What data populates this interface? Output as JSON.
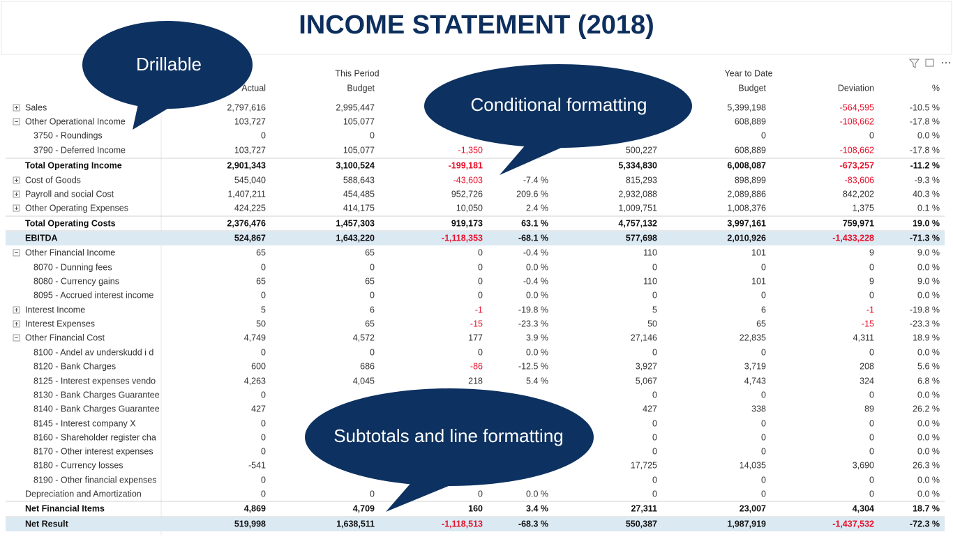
{
  "header": {
    "title": "INCOME STATEMENT (2018)"
  },
  "callouts": [
    "Drillable",
    "Conditional formatting",
    "Subtotals and line formatting"
  ],
  "table": {
    "group_headers": [
      "This Period",
      "Year to Date"
    ],
    "columns": [
      null,
      "Actual",
      "Budget",
      null,
      null,
      null,
      "Budget",
      "Deviation",
      "%"
    ],
    "rows": [
      [
        "Sales",
        "2,797,616",
        "2,995,447",
        null,
        null,
        null,
        "5,399,198",
        "-564,595",
        "-10.5 %"
      ],
      [
        "Other Operational Income",
        "103,727",
        "105,077",
        null,
        null,
        null,
        "608,889",
        "-108,662",
        "-17.8 %"
      ],
      [
        "3750 - Roundings",
        "0",
        "0",
        null,
        null,
        null,
        "0",
        "0",
        "0.0 %"
      ],
      [
        "3790 - Deferred Income",
        "103,727",
        "105,077",
        "-1,350",
        null,
        "500,227",
        "608,889",
        "-108,662",
        "-17.8 %"
      ],
      [
        "Total Operating Income",
        "2,901,343",
        "3,100,524",
        "-199,181",
        null,
        "5,334,830",
        "6,008,087",
        "-673,257",
        "-11.2 %"
      ],
      [
        "Cost of Goods",
        "545,040",
        "588,643",
        "-43,603",
        "-7.4 %",
        "815,293",
        "898,899",
        "-83,606",
        "-9.3 %"
      ],
      [
        "Payroll and social Cost",
        "1,407,211",
        "454,485",
        "952,726",
        "209.6 %",
        "2,932,088",
        "2,089,886",
        "842,202",
        "40.3 %"
      ],
      [
        "Other Operating Expenses",
        "424,225",
        "414,175",
        "10,050",
        "2.4 %",
        "1,009,751",
        "1,008,376",
        "1,375",
        "0.1 %"
      ],
      [
        "Total Operating Costs",
        "2,376,476",
        "1,457,303",
        "919,173",
        "63.1 %",
        "4,757,132",
        "3,997,161",
        "759,971",
        "19.0 %"
      ],
      [
        "EBITDA",
        "524,867",
        "1,643,220",
        "-1,118,353",
        "-68.1 %",
        "577,698",
        "2,010,926",
        "-1,433,228",
        "-71.3 %"
      ],
      [
        "Other Financial Income",
        "65",
        "65",
        "0",
        "-0.4 %",
        "110",
        "101",
        "9",
        "9.0 %"
      ],
      [
        "8070 - Dunning fees",
        "0",
        "0",
        "0",
        "0.0 %",
        "0",
        "0",
        "0",
        "0.0 %"
      ],
      [
        "8080 - Currency gains",
        "65",
        "65",
        "0",
        "-0.4 %",
        "110",
        "101",
        "9",
        "9.0 %"
      ],
      [
        "8095 - Accrued interest income",
        "0",
        "0",
        "0",
        "0.0 %",
        "0",
        "0",
        "0",
        "0.0 %"
      ],
      [
        "Interest Income",
        "5",
        "6",
        "-1",
        "-19.8 %",
        "5",
        "6",
        "-1",
        "-19.8 %"
      ],
      [
        "Interest Expenses",
        "50",
        "65",
        "-15",
        "-23.3 %",
        "50",
        "65",
        "-15",
        "-23.3 %"
      ],
      [
        "Other Financial Cost",
        "4,749",
        "4,572",
        "177",
        "3.9 %",
        "27,146",
        "22,835",
        "4,311",
        "18.9 %"
      ],
      [
        "8100 - Andel av underskudd i d",
        "0",
        "0",
        "0",
        "0.0 %",
        "0",
        "0",
        "0",
        "0.0 %"
      ],
      [
        "8120 - Bank Charges",
        "600",
        "686",
        "-86",
        "-12.5 %",
        "3,927",
        "3,719",
        "208",
        "5.6 %"
      ],
      [
        "8125 - Interest expenses vendo",
        "4,263",
        "4,045",
        "218",
        "5.4 %",
        "5,067",
        "4,743",
        "324",
        "6.8 %"
      ],
      [
        "8130 - Bank Charges Guarantee",
        "0",
        null,
        null,
        null,
        "0",
        "0",
        "0",
        "0.0 %"
      ],
      [
        "8140 - Bank Charges Guarantee",
        "427",
        null,
        null,
        null,
        "427",
        "338",
        "89",
        "26.2 %"
      ],
      [
        "8145 - Interest company X",
        "0",
        null,
        null,
        null,
        "0",
        "0",
        "0",
        "0.0 %"
      ],
      [
        "8160 - Shareholder register cha",
        "0",
        null,
        null,
        null,
        "0",
        "0",
        "0",
        "0.0 %"
      ],
      [
        "8170 - Other interest expenses",
        "0",
        null,
        null,
        null,
        "0",
        "0",
        "0",
        "0.0 %"
      ],
      [
        "8180 - Currency losses",
        "-541",
        null,
        null,
        null,
        "17,725",
        "14,035",
        "3,690",
        "26.3 %"
      ],
      [
        "8190 - Other financial expenses",
        "0",
        null,
        null,
        null,
        "0",
        "0",
        "0",
        "0.0 %"
      ],
      [
        "Depreciation and Amortization",
        "0",
        "0",
        "0",
        "0.0 %",
        "0",
        "0",
        "0",
        "0.0 %"
      ],
      [
        "Net Financial Items",
        "4,869",
        "4,709",
        "160",
        "3.4 %",
        "27,311",
        "23,007",
        "4,304",
        "18.7 %"
      ],
      [
        "Net Result",
        "519,998",
        "1,638,511",
        "-1,118,513",
        "-68.3 %",
        "550,387",
        "1,987,919",
        "-1,437,532",
        "-72.3 %"
      ]
    ]
  }
}
